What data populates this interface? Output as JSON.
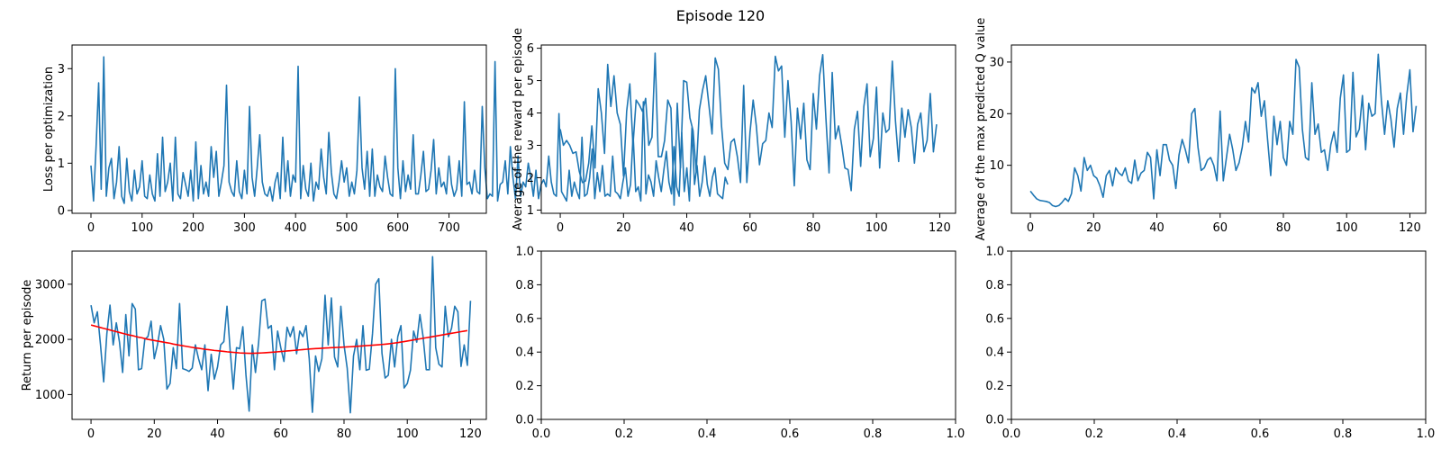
{
  "figure": {
    "title": "Episode 120"
  },
  "chart_data": [
    {
      "id": "loss",
      "type": "line",
      "ylabel": "Loss per optimization",
      "xlim": [
        -37,
        773
      ],
      "ylim": [
        -0.06,
        3.5
      ],
      "xticks": [
        0,
        100,
        200,
        300,
        400,
        500,
        600,
        700
      ],
      "yticks": [
        0,
        1,
        2,
        3
      ],
      "grid": false,
      "series": [
        {
          "color": "#1f77b4",
          "x_start": 0,
          "x_step": 5,
          "values": [
            0.95,
            0.2,
            1.35,
            2.7,
            0.45,
            3.25,
            0.3,
            0.9,
            1.1,
            0.25,
            0.6,
            1.35,
            0.3,
            0.15,
            1.1,
            0.4,
            0.2,
            0.85,
            0.35,
            0.5,
            1.05,
            0.3,
            0.25,
            0.75,
            0.35,
            0.2,
            1.2,
            0.3,
            1.55,
            0.4,
            0.6,
            1.0,
            0.2,
            1.55,
            0.35,
            0.25,
            0.8,
            0.55,
            0.3,
            0.85,
            0.2,
            1.45,
            0.25,
            0.95,
            0.35,
            0.6,
            0.3,
            1.35,
            0.7,
            1.25,
            0.3,
            0.6,
            0.95,
            2.65,
            0.6,
            0.4,
            0.3,
            1.05,
            0.4,
            0.25,
            0.85,
            0.35,
            2.2,
            0.7,
            0.3,
            0.9,
            1.6,
            0.6,
            0.35,
            0.3,
            0.5,
            0.2,
            0.6,
            0.8,
            0.25,
            1.55,
            0.4,
            1.05,
            0.3,
            0.75,
            0.6,
            3.05,
            0.25,
            0.95,
            0.45,
            0.3,
            1.0,
            0.2,
            0.6,
            0.45,
            1.3,
            0.7,
            0.35,
            1.65,
            0.8,
            0.35,
            0.25,
            0.6,
            1.05,
            0.6,
            0.9,
            0.3,
            0.6,
            0.35,
            0.85,
            2.4,
            0.9,
            0.45,
            1.25,
            0.3,
            1.3,
            0.3,
            0.75,
            0.5,
            0.4,
            1.15,
            0.7,
            0.35,
            0.3,
            3.0,
            0.9,
            0.25,
            1.05,
            0.4,
            0.75,
            0.45,
            1.6,
            0.35,
            0.35,
            0.75,
            1.25,
            0.4,
            0.45,
            0.85,
            1.5,
            0.35,
            0.9,
            0.5,
            0.6,
            0.35,
            1.15,
            0.55,
            0.3,
            0.45,
            1.05,
            0.3,
            2.3,
            0.55,
            0.6,
            0.35,
            0.85,
            0.4,
            0.35,
            2.2,
            0.9,
            0.25,
            0.35,
            0.3,
            3.15,
            0.2,
            0.55,
            0.6,
            1.05,
            0.35,
            1.35,
            0.7,
            0.25,
            1.15,
            0.3,
            0.6,
            0.5,
            1.0,
            0.7,
            0.3,
            0.85,
            0.25,
            0.55,
            0.65,
            0.5,
            1.15,
            0.6,
            0.35,
            0.3,
            2.05,
            0.4,
            0.3,
            0.2,
            0.85,
            0.3,
            0.6,
            0.4,
            0.25,
            1.55,
            0.3,
            0.35,
            0.7,
            1.3,
            0.25,
            0.8,
            0.4,
            0.95,
            0.3,
            0.35,
            0.3,
            1.15,
            0.4,
            0.35,
            0.25,
            0.6,
            0.9,
            0.3,
            0.55,
            1.6,
            0.4,
            0.5,
            0.2,
            2.3,
            0.35,
            0.75,
            0.6,
            0.3,
            1.05,
            0.7,
            0.4,
            0.85,
            1.25,
            0.6,
            0.35,
            1.35,
            0.5,
            0.3,
            1.65,
            0.4,
            0.9,
            0.2,
            1.75,
            0.55,
            0.95,
            0.3,
            0.6,
            1.15,
            0.55,
            0.3,
            0.7,
            0.9,
            0.35,
            0.3,
            0.25,
            0.7,
            0.55
          ]
        }
      ]
    },
    {
      "id": "reward",
      "type": "line",
      "ylabel": "Average of the reward per episode",
      "xlim": [
        -6,
        125
      ],
      "ylim": [
        0.9,
        6.1
      ],
      "xticks": [
        0,
        20,
        40,
        60,
        80,
        100,
        120
      ],
      "yticks": [
        1,
        2,
        3,
        4,
        5,
        6
      ],
      "grid": false,
      "series": [
        {
          "color": "#1f77b4",
          "x_start": 0,
          "x_step": 1,
          "values": [
            3.5,
            3.0,
            3.15,
            3.0,
            2.75,
            2.8,
            2.2,
            1.85,
            1.9,
            2.45,
            3.6,
            2.3,
            4.75,
            4.0,
            2.75,
            5.5,
            4.2,
            5.15,
            4.0,
            3.65,
            2.05,
            4.05,
            4.9,
            3.0,
            4.4,
            4.25,
            4.05,
            4.45,
            3.0,
            3.25,
            5.85,
            2.65,
            2.65,
            3.15,
            4.4,
            4.15,
            1.15,
            4.3,
            2.3,
            5.0,
            4.95,
            3.85,
            3.45,
            2.2,
            4.1,
            4.7,
            5.15,
            4.25,
            3.35,
            5.7,
            5.35,
            3.6,
            2.45,
            2.25,
            3.1,
            3.2,
            2.65,
            1.85,
            4.85,
            1.85,
            3.4,
            4.4,
            3.6,
            2.4,
            3.05,
            3.15,
            4.0,
            3.55,
            5.75,
            5.3,
            5.45,
            3.25,
            5.0,
            3.75,
            1.75,
            4.15,
            3.2,
            4.3,
            2.55,
            2.25,
            4.6,
            3.5,
            5.15,
            5.8,
            3.85,
            2.15,
            5.25,
            3.2,
            3.6,
            3.0,
            2.3,
            2.25,
            1.6,
            3.5,
            4.05,
            2.35,
            4.2,
            4.9,
            2.65,
            3.2,
            4.8,
            2.3,
            4.0,
            3.4,
            3.5,
            5.6,
            3.75,
            2.5,
            4.15,
            3.25,
            4.1,
            3.55,
            2.45,
            3.65,
            4.0,
            2.8,
            3.15,
            4.6,
            2.8,
            3.65
          ]
        }
      ]
    },
    {
      "id": "maxq",
      "type": "line",
      "ylabel": "Average of the max predicted Q value",
      "xlim": [
        -6,
        125
      ],
      "ylim": [
        0.7,
        33.3
      ],
      "xticks": [
        0,
        20,
        40,
        60,
        80,
        100,
        120
      ],
      "yticks": [
        10,
        20,
        30
      ],
      "grid": false,
      "series": [
        {
          "color": "#1f77b4",
          "x_start": 0,
          "x_step": 1,
          "values": [
            5.0,
            4.2,
            3.5,
            3.2,
            3.1,
            3.0,
            2.8,
            2.2,
            2.0,
            2.2,
            2.8,
            3.6,
            3.0,
            4.5,
            9.5,
            8.0,
            5.0,
            11.5,
            9.0,
            10.0,
            8.0,
            7.5,
            6.0,
            3.8,
            8.0,
            9.0,
            6.0,
            9.5,
            8.5,
            8.0,
            9.5,
            7.0,
            6.5,
            11.0,
            7.0,
            8.5,
            9.0,
            12.5,
            11.5,
            3.5,
            13.0,
            8.0,
            14.0,
            14.0,
            11.0,
            10.0,
            5.5,
            12.0,
            15.0,
            13.0,
            10.5,
            20.0,
            21.0,
            13.5,
            9.0,
            9.5,
            11.0,
            11.5,
            10.0,
            7.0,
            20.5,
            7.0,
            11.5,
            16.0,
            13.0,
            9.0,
            10.5,
            13.5,
            18.5,
            14.5,
            25.0,
            24.0,
            26.0,
            19.5,
            22.5,
            15.0,
            8.0,
            19.5,
            14.0,
            18.5,
            11.5,
            10.0,
            18.5,
            16.0,
            30.5,
            29.0,
            17.0,
            11.5,
            11.0,
            26.0,
            16.0,
            18.0,
            12.5,
            13.0,
            9.0,
            14.0,
            16.5,
            12.5,
            23.0,
            27.5,
            12.5,
            13.0,
            28.0,
            15.5,
            17.0,
            23.5,
            13.0,
            22.0,
            19.5,
            20.0,
            31.5,
            22.5,
            16.0,
            22.5,
            19.0,
            13.5,
            21.0,
            24.0,
            16.0,
            23.5,
            28.5,
            16.5,
            21.5
          ]
        }
      ]
    },
    {
      "id": "return",
      "type": "line",
      "ylabel": "Return per episode",
      "xlim": [
        -6,
        125
      ],
      "ylim": [
        550,
        3600
      ],
      "xticks": [
        0,
        20,
        40,
        60,
        80,
        100,
        120
      ],
      "yticks": [
        1000,
        2000,
        3000
      ],
      "grid": false,
      "series": [
        {
          "color": "#1f77b4",
          "x_start": 0,
          "x_step": 1,
          "values": [
            2620,
            2300,
            2500,
            1900,
            1230,
            2100,
            2620,
            1900,
            2300,
            1950,
            1400,
            2450,
            1700,
            2650,
            2550,
            1450,
            1470,
            2000,
            2050,
            2330,
            1650,
            1900,
            2250,
            2000,
            1100,
            1200,
            1850,
            1470,
            2650,
            1470,
            1450,
            1420,
            1480,
            1900,
            1650,
            1450,
            1900,
            1070,
            1730,
            1280,
            1500,
            1900,
            1960,
            2600,
            1800,
            1100,
            1850,
            1830,
            2230,
            1350,
            700,
            1900,
            1400,
            1950,
            2700,
            2730,
            2200,
            2250,
            1450,
            2150,
            1850,
            1600,
            2220,
            2050,
            2230,
            1740,
            2150,
            2050,
            2250,
            1650,
            680,
            1700,
            1420,
            1650,
            2800,
            1900,
            2750,
            1680,
            1500,
            2600,
            1900,
            1480,
            670,
            1700,
            2000,
            1450,
            2250,
            1440,
            1460,
            2100,
            3000,
            3100,
            1750,
            1300,
            1350,
            2000,
            1500,
            2050,
            2250,
            1120,
            1200,
            1440,
            2150,
            1950,
            2450,
            2050,
            1450,
            1450,
            3500,
            1850,
            1550,
            1500,
            2600,
            2050,
            2200,
            2600,
            2500,
            1510,
            1900,
            1530,
            2700
          ]
        },
        {
          "color": "#ff0000",
          "x_start": 0,
          "x_step": 1,
          "values": [
            2260,
            2245,
            2230,
            2215,
            2200,
            2185,
            2170,
            2155,
            2140,
            2125,
            2110,
            2095,
            2080,
            2070,
            2055,
            2040,
            2030,
            2015,
            2000,
            1990,
            1980,
            1970,
            1960,
            1950,
            1940,
            1930,
            1915,
            1905,
            1895,
            1885,
            1875,
            1865,
            1855,
            1845,
            1840,
            1830,
            1820,
            1815,
            1808,
            1800,
            1795,
            1788,
            1782,
            1775,
            1770,
            1765,
            1760,
            1755,
            1752,
            1750,
            1748,
            1748,
            1750,
            1752,
            1755,
            1758,
            1762,
            1766,
            1770,
            1775,
            1780,
            1785,
            1790,
            1795,
            1800,
            1805,
            1810,
            1815,
            1820,
            1825,
            1830,
            1833,
            1836,
            1840,
            1843,
            1846,
            1849,
            1852,
            1855,
            1858,
            1861,
            1864,
            1867,
            1870,
            1874,
            1878,
            1882,
            1886,
            1890,
            1894,
            1898,
            1903,
            1908,
            1913,
            1919,
            1926,
            1934,
            1942,
            1951,
            1960,
            1970,
            1980,
            1990,
            2000,
            2010,
            2020,
            2030,
            2040,
            2050,
            2060,
            2070,
            2080,
            2090,
            2100,
            2110,
            2120,
            2130,
            2140,
            2150,
            2160
          ]
        }
      ]
    },
    {
      "id": "empty1",
      "type": "line",
      "xlim": [
        0,
        1
      ],
      "ylim": [
        0,
        1
      ],
      "xticks": [
        0.0,
        0.2,
        0.4,
        0.6,
        0.8,
        1.0
      ],
      "yticks": [
        0.0,
        0.2,
        0.4,
        0.6,
        0.8,
        1.0
      ],
      "tick_format": "1dp",
      "grid": false,
      "series": []
    },
    {
      "id": "empty2",
      "type": "line",
      "xlim": [
        0,
        1
      ],
      "ylim": [
        0,
        1
      ],
      "xticks": [
        0.0,
        0.2,
        0.4,
        0.6,
        0.8,
        1.0
      ],
      "yticks": [
        0.0,
        0.2,
        0.4,
        0.6,
        0.8,
        1.0
      ],
      "tick_format": "1dp",
      "grid": false,
      "series": []
    }
  ]
}
